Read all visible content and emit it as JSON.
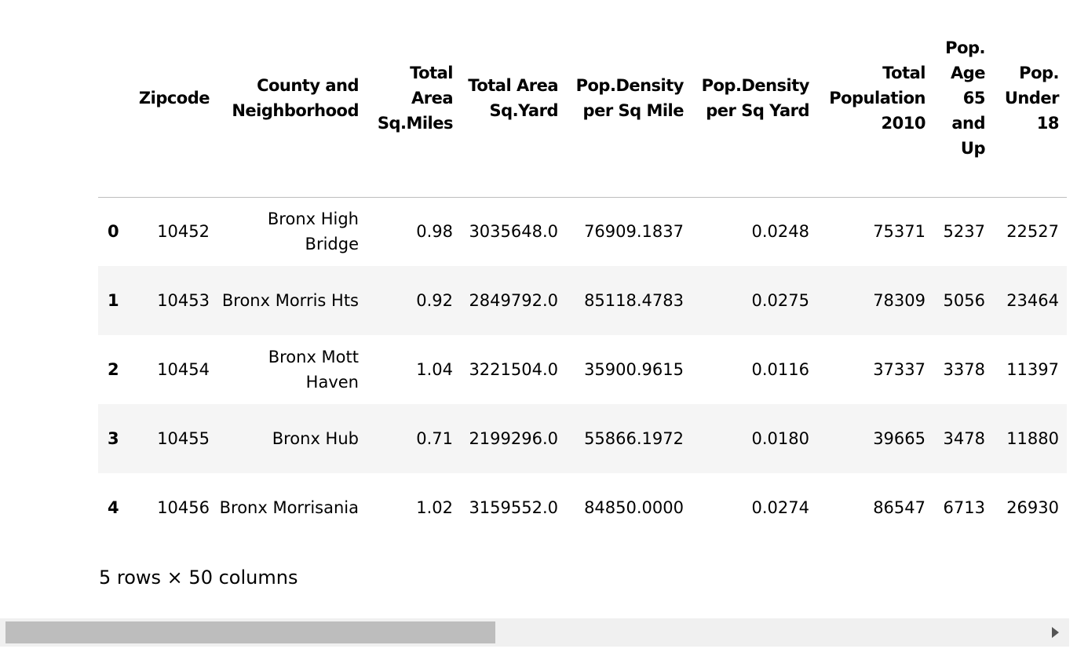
{
  "table": {
    "columns": [
      "Zipcode",
      "County and Neighborhood",
      "Total Area Sq.Miles",
      "Total Area Sq.Yard",
      "Pop.Density per Sq Mile",
      "Pop.Density per Sq Yard",
      "Total Population 2010",
      "Pop. Age 65 and Up",
      "Pop. Under 18"
    ],
    "rows": [
      [
        "0",
        "10452",
        "Bronx High Bridge",
        "0.98",
        "3035648.0",
        "76909.1837",
        "0.0248",
        "75371",
        "5237",
        "22527"
      ],
      [
        "1",
        "10453",
        "Bronx Morris Hts",
        "0.92",
        "2849792.0",
        "85118.4783",
        "0.0275",
        "78309",
        "5056",
        "23464"
      ],
      [
        "2",
        "10454",
        "Bronx Mott Haven",
        "1.04",
        "3221504.0",
        "35900.9615",
        "0.0116",
        "37337",
        "3378",
        "11397"
      ],
      [
        "3",
        "10455",
        "Bronx Hub",
        "0.71",
        "2199296.0",
        "55866.1972",
        "0.0180",
        "39665",
        "3478",
        "11880"
      ],
      [
        "4",
        "10456",
        "Bronx Morrisania",
        "1.02",
        "3159552.0",
        "84850.0000",
        "0.0274",
        "86547",
        "6713",
        "26930"
      ]
    ]
  },
  "footer": "5 rows × 50 columns"
}
